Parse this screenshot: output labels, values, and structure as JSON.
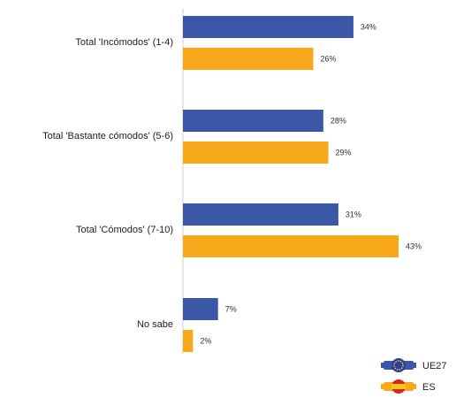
{
  "chart_data": {
    "type": "bar",
    "orientation": "horizontal",
    "categories": [
      "Total 'Incómodos' (1-4)",
      "Total 'Bastante cómodos' (5-6)",
      "Total 'Cómodos' (7-10)",
      "No sabe"
    ],
    "series": [
      {
        "name": "UE27",
        "values": [
          34,
          28,
          31,
          7
        ],
        "color": "#3b58a8",
        "icon": "eu-flag-icon"
      },
      {
        "name": "ES",
        "values": [
          26,
          29,
          43,
          2
        ],
        "color": "#f7a81b",
        "icon": "spain-flag-icon"
      }
    ],
    "value_suffix": "%",
    "xlim": [
      0,
      43
    ],
    "grid": false,
    "legend_position": "bottom-right",
    "title": "",
    "xlabel": "",
    "ylabel": ""
  }
}
